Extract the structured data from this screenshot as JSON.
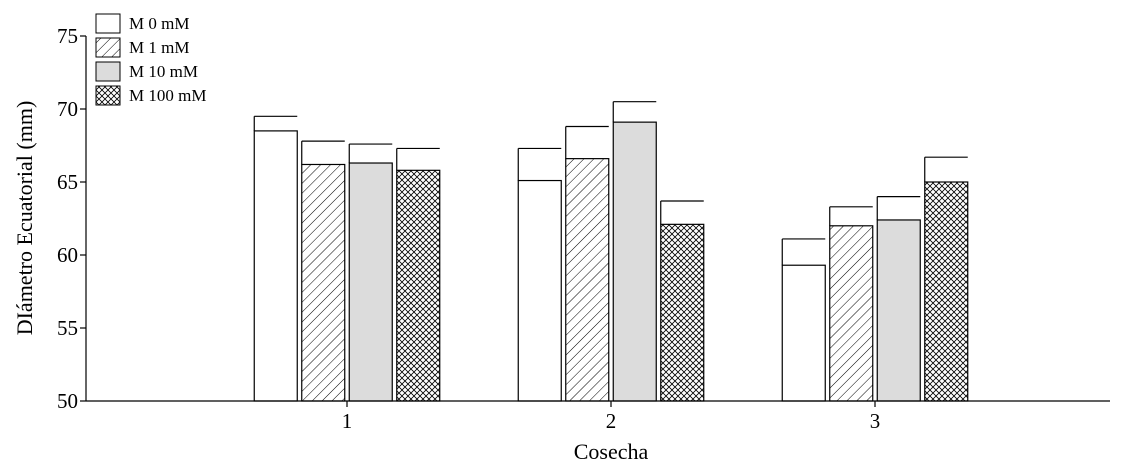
{
  "chart_data": {
    "type": "bar",
    "title": "",
    "xlabel": "Cosecha",
    "ylabel": "DIámetro Ecuatorial (mm)",
    "categories": [
      "1",
      "2",
      "3"
    ],
    "ylim": [
      50,
      75
    ],
    "yticks": [
      50,
      55,
      60,
      65,
      70,
      75
    ],
    "grid": false,
    "legend_position": "top-left",
    "series": [
      {
        "name": "M 0 mM",
        "pattern": "white",
        "values": [
          68.5,
          65.1,
          59.3
        ],
        "errors": [
          1.0,
          2.2,
          1.8
        ]
      },
      {
        "name": "M 1 mM",
        "pattern": "diagonal-hatch",
        "values": [
          66.2,
          66.6,
          62.0
        ],
        "errors": [
          1.6,
          2.2,
          1.3
        ]
      },
      {
        "name": "M 10 mM",
        "pattern": "light-gray",
        "values": [
          66.3,
          69.1,
          62.4
        ],
        "errors": [
          1.3,
          1.4,
          1.6
        ]
      },
      {
        "name": "M 100 mM",
        "pattern": "crosshatch",
        "values": [
          65.8,
          62.1,
          65.0
        ],
        "errors": [
          1.5,
          1.6,
          1.7
        ]
      }
    ]
  }
}
